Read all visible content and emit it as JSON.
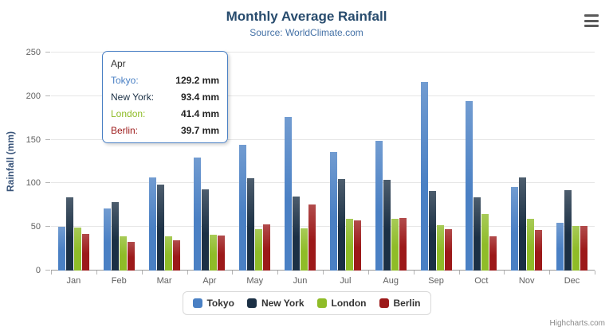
{
  "title": "Monthly Average Rainfall",
  "subtitle": "Source: WorldClimate.com",
  "credits": "Highcharts.com",
  "icons": {
    "export_menu": "hamburger-icon"
  },
  "chart_data": {
    "type": "bar",
    "title": "Monthly Average Rainfall",
    "subtitle": "Source: WorldClimate.com",
    "categories": [
      "Jan",
      "Feb",
      "Mar",
      "Apr",
      "May",
      "Jun",
      "Jul",
      "Aug",
      "Sep",
      "Oct",
      "Nov",
      "Dec"
    ],
    "series": [
      {
        "name": "Tokyo",
        "color": "#4a80c4",
        "values": [
          49.9,
          71.5,
          106.4,
          129.2,
          144.0,
          176.0,
          135.6,
          148.5,
          216.4,
          194.1,
          95.6,
          54.4
        ]
      },
      {
        "name": "New York",
        "color": "#1b3045",
        "values": [
          83.6,
          78.8,
          98.5,
          93.4,
          106.0,
          84.5,
          105.0,
          104.3,
          91.2,
          83.5,
          106.6,
          92.3
        ]
      },
      {
        "name": "London",
        "color": "#8fbc28",
        "values": [
          48.9,
          38.8,
          39.3,
          41.4,
          47.0,
          48.3,
          59.0,
          59.6,
          52.4,
          65.2,
          59.3,
          51.2
        ]
      },
      {
        "name": "Berlin",
        "color": "#9c1919",
        "values": [
          42.4,
          33.2,
          34.5,
          39.7,
          52.6,
          75.5,
          57.4,
          60.4,
          47.6,
          39.1,
          46.8,
          51.1
        ]
      }
    ],
    "xlabel": "",
    "ylabel": "Rainfall (mm)",
    "ylim": [
      0,
      250
    ],
    "yticks": [
      0,
      50,
      100,
      150,
      200,
      250
    ],
    "grid": true,
    "legend_position": "bottom"
  },
  "tooltip": {
    "header": "Apr",
    "rows": [
      {
        "name": "Tokyo:",
        "value": "129.2 mm"
      },
      {
        "name": "New York:",
        "value": "93.4 mm"
      },
      {
        "name": "London:",
        "value": "41.4 mm"
      },
      {
        "name": "Berlin:",
        "value": "39.7 mm"
      }
    ]
  }
}
